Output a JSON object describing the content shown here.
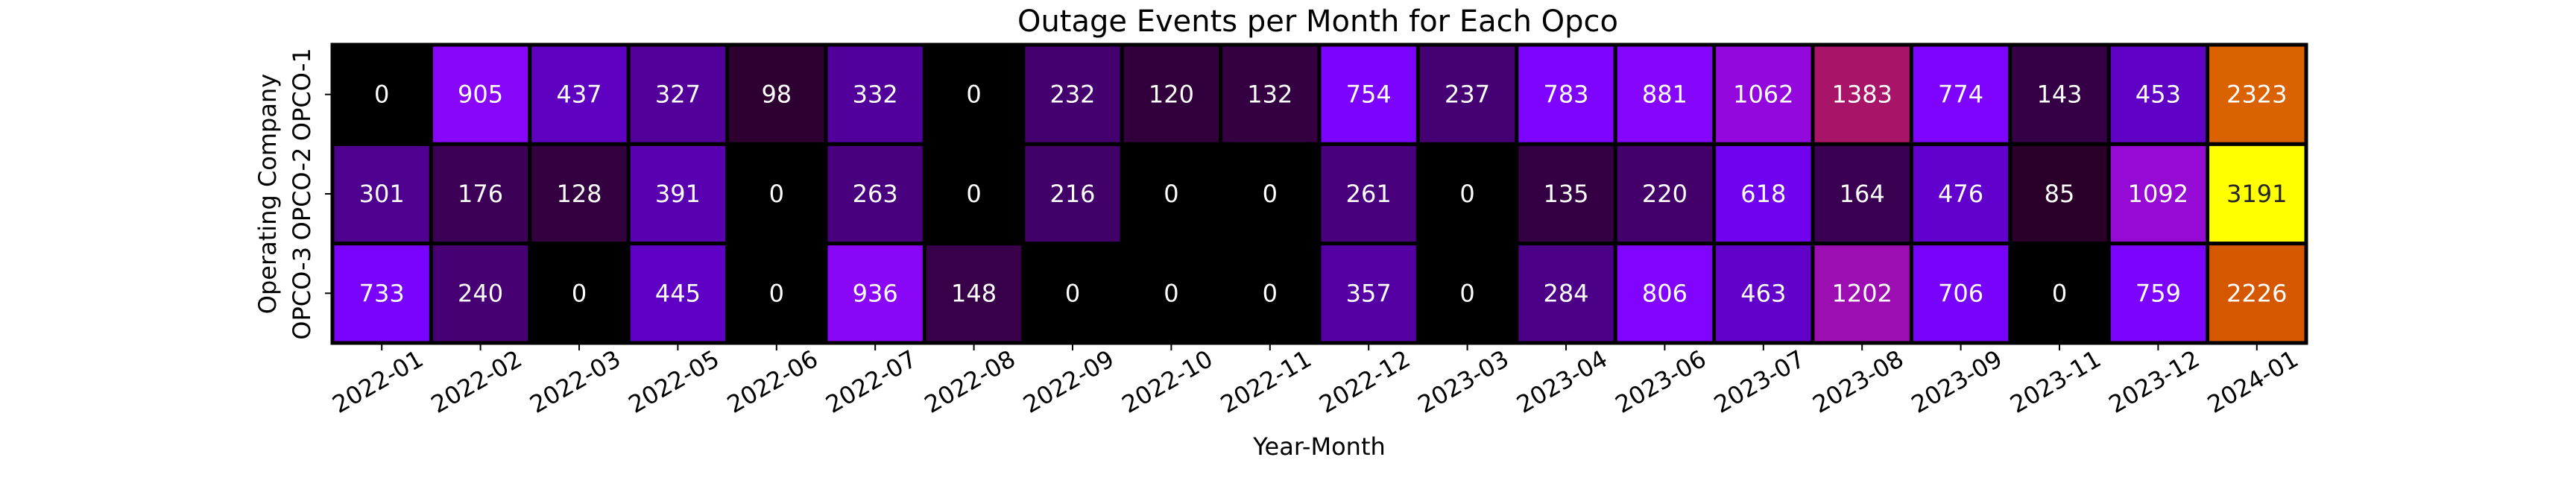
{
  "chart_data": {
    "type": "heatmap",
    "title": "Outage Events per Month for Each Opco",
    "xlabel": "Year-Month",
    "ylabel": "Operating Company",
    "x_categories": [
      "2022-01",
      "2022-02",
      "2022-03",
      "2022-05",
      "2022-06",
      "2022-07",
      "2022-08",
      "2022-09",
      "2022-10",
      "2022-11",
      "2022-12",
      "2023-03",
      "2023-04",
      "2023-06",
      "2023-07",
      "2023-08",
      "2023-09",
      "2023-11",
      "2023-12",
      "2024-01"
    ],
    "y_categories": [
      "OPCO-1",
      "OPCO-2",
      "OPCO-3"
    ],
    "values": [
      [
        0,
        905,
        437,
        327,
        98,
        332,
        0,
        232,
        120,
        132,
        754,
        237,
        783,
        881,
        1062,
        1383,
        774,
        143,
        453,
        2323
      ],
      [
        301,
        176,
        128,
        391,
        0,
        263,
        0,
        216,
        0,
        0,
        261,
        0,
        135,
        220,
        618,
        164,
        476,
        85,
        1092,
        3191
      ],
      [
        733,
        240,
        0,
        445,
        0,
        936,
        148,
        0,
        0,
        0,
        357,
        0,
        284,
        806,
        463,
        1202,
        706,
        0,
        759,
        2226
      ]
    ],
    "value_range": [
      0,
      3191
    ],
    "colormap": "gnuplot",
    "colorbar": false,
    "annotations": true,
    "cell_border_color": "#000000"
  }
}
